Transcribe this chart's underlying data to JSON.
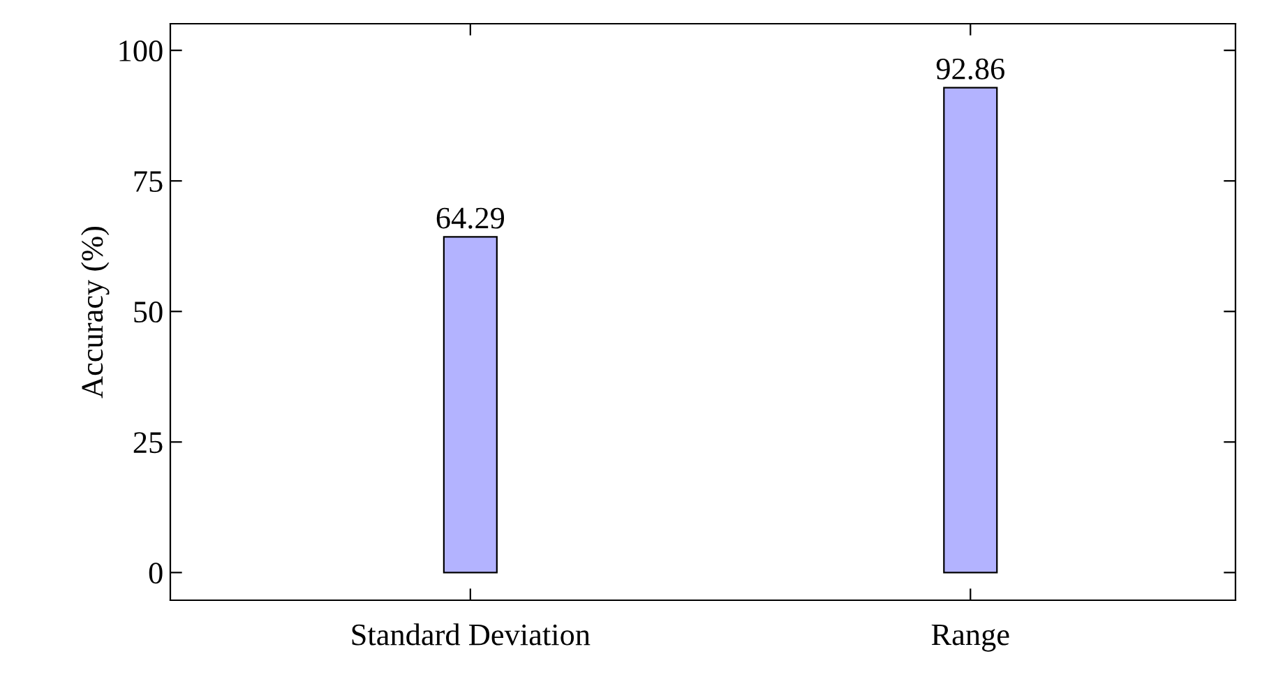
{
  "chart_data": {
    "type": "bar",
    "ylabel": "Accuracy (%)",
    "categories": [
      "Standard Deviation",
      "Range"
    ],
    "series": [
      {
        "color": "#b3b3ff",
        "values": [
          64.29,
          92.86
        ]
      }
    ],
    "ylim": [
      -5.3,
      105.1
    ],
    "yticks": [
      0,
      25,
      50,
      75,
      100
    ],
    "data_labels": true,
    "grid": false,
    "legend": false
  }
}
